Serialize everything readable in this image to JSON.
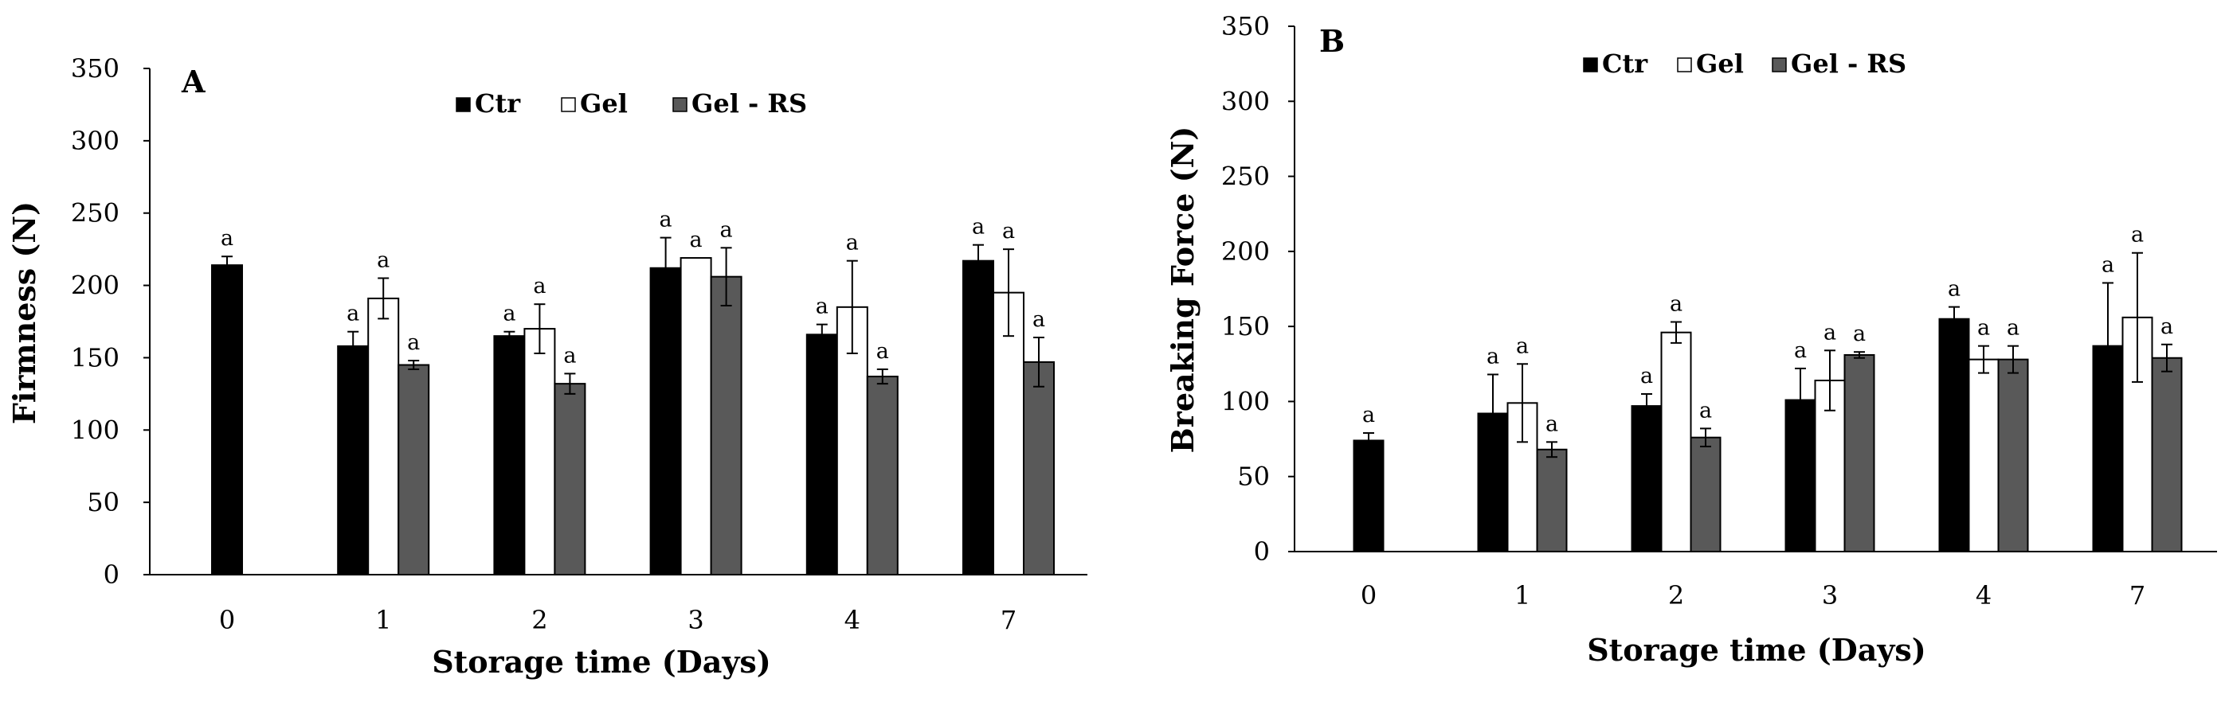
{
  "colors": {
    "Ctr": "#000000",
    "Gel": "#ffffff",
    "Gel - RS": "#595959"
  },
  "chart_data": [
    {
      "type": "bar",
      "panel_label": "A",
      "title": "",
      "xlabel": "Storage time (Days)",
      "ylabel": "Firmness (N)",
      "ylim": [
        0,
        350
      ],
      "yticks": [
        0,
        50,
        100,
        150,
        200,
        250,
        300,
        350
      ],
      "categories": [
        "0",
        "1",
        "2",
        "3",
        "4",
        "7"
      ],
      "grid": false,
      "legend_position": "top-center",
      "legend": [
        "Ctr",
        "Gel",
        "Gel - RS"
      ],
      "series": [
        {
          "name": "Ctr",
          "values": [
            214,
            158,
            165,
            212,
            166,
            217
          ],
          "errors": [
            6,
            10,
            3,
            21,
            7,
            11
          ],
          "labels": [
            "a",
            "a",
            "a",
            "a",
            "a",
            "a"
          ]
        },
        {
          "name": "Gel",
          "values": [
            null,
            191,
            170,
            219,
            185,
            195
          ],
          "errors": [
            null,
            14,
            17,
            0,
            32,
            30
          ],
          "labels": [
            null,
            "a",
            "a",
            "a",
            "a",
            "a"
          ]
        },
        {
          "name": "Gel - RS",
          "values": [
            null,
            145,
            132,
            206,
            137,
            147
          ],
          "errors": [
            null,
            3,
            7,
            20,
            5,
            17
          ],
          "labels": [
            null,
            "a",
            "a",
            "a",
            "a",
            "a"
          ]
        }
      ]
    },
    {
      "type": "bar",
      "panel_label": "B",
      "title": "",
      "xlabel": "Storage time (Days)",
      "ylabel": "Breaking Force (N)",
      "ylim": [
        0,
        350
      ],
      "yticks": [
        0,
        50,
        100,
        150,
        200,
        250,
        300,
        350
      ],
      "categories": [
        "0",
        "1",
        "2",
        "3",
        "4",
        "7"
      ],
      "grid": false,
      "legend_position": "top-center",
      "legend": [
        "Ctr",
        "Gel",
        "Gel - RS"
      ],
      "series": [
        {
          "name": "Ctr",
          "values": [
            74,
            92,
            97,
            101,
            155,
            137
          ],
          "errors": [
            5,
            26,
            8,
            21,
            8,
            42
          ],
          "labels": [
            "a",
            "a",
            "a",
            "a",
            "a",
            "a"
          ]
        },
        {
          "name": "Gel",
          "values": [
            null,
            99,
            146,
            114,
            128,
            156
          ],
          "errors": [
            null,
            26,
            7,
            20,
            9,
            43
          ],
          "labels": [
            null,
            "a",
            "a",
            "a",
            "a",
            "a"
          ]
        },
        {
          "name": "Gel - RS",
          "values": [
            null,
            68,
            76,
            131,
            128,
            129
          ],
          "errors": [
            null,
            5,
            6,
            2,
            9,
            9
          ],
          "labels": [
            null,
            "a",
            "a",
            "a",
            "a",
            "a"
          ]
        }
      ]
    }
  ]
}
